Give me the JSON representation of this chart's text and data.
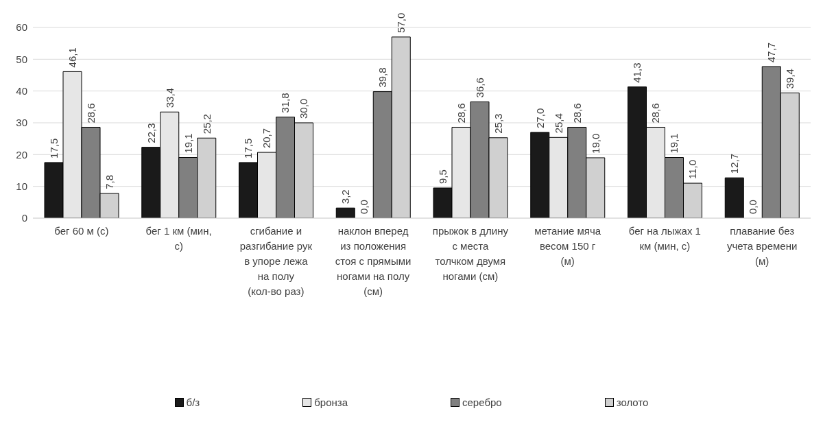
{
  "chart_data": {
    "type": "bar",
    "categories": [
      "бег 60 м (с)",
      "бег 1 км (мин, с)",
      "сгибание и разгибание рук в упоре лежа на полу (кол-во раз)",
      "наклон вперед из положения стоя с прямыми ногами на полу (см)",
      "прыжок в длину с места толчком двумя ногами (см)",
      "метание мяча весом 150 г (м)",
      "бег на лыжах 1 км (мин, с)",
      "плавание без учета времени (м)"
    ],
    "series": [
      {
        "name": "б/з",
        "color": "#1a1a1a",
        "values": [
          17.5,
          22.3,
          17.5,
          3.2,
          9.5,
          27.0,
          41.3,
          12.7
        ],
        "value_labels": [
          "17,5",
          "22,3",
          "17,5",
          "3,2",
          "9,5",
          "27,0",
          "41,3",
          "12,7"
        ]
      },
      {
        "name": "бронза",
        "color": "#e6e6e6",
        "values": [
          46.1,
          33.4,
          20.7,
          0.0,
          28.6,
          25.4,
          28.6,
          0.0
        ],
        "value_labels": [
          "46,1",
          "33,4",
          "20,7",
          "0,0",
          "28,6",
          "25,4",
          "28,6",
          "0,0"
        ]
      },
      {
        "name": "серебро",
        "color": "#808080",
        "values": [
          28.6,
          19.1,
          31.8,
          39.8,
          36.6,
          28.6,
          19.1,
          47.7
        ],
        "value_labels": [
          "28,6",
          "19,1",
          "31,8",
          "39,8",
          "36,6",
          "28,6",
          "19,1",
          "47,7"
        ]
      },
      {
        "name": "золото",
        "color": "#d0d0d0",
        "values": [
          7.8,
          25.2,
          30.0,
          57.0,
          25.3,
          19.0,
          11.0,
          39.4
        ],
        "value_labels": [
          "7,8",
          "25,2",
          "30,0",
          "57,0",
          "25,3",
          "19,0",
          "11,0",
          "39,4"
        ]
      }
    ],
    "ylim": [
      0,
      60
    ],
    "yticks": [
      0,
      10,
      20,
      30,
      40,
      50,
      60
    ],
    "grid": "y",
    "legend": "bottom"
  }
}
